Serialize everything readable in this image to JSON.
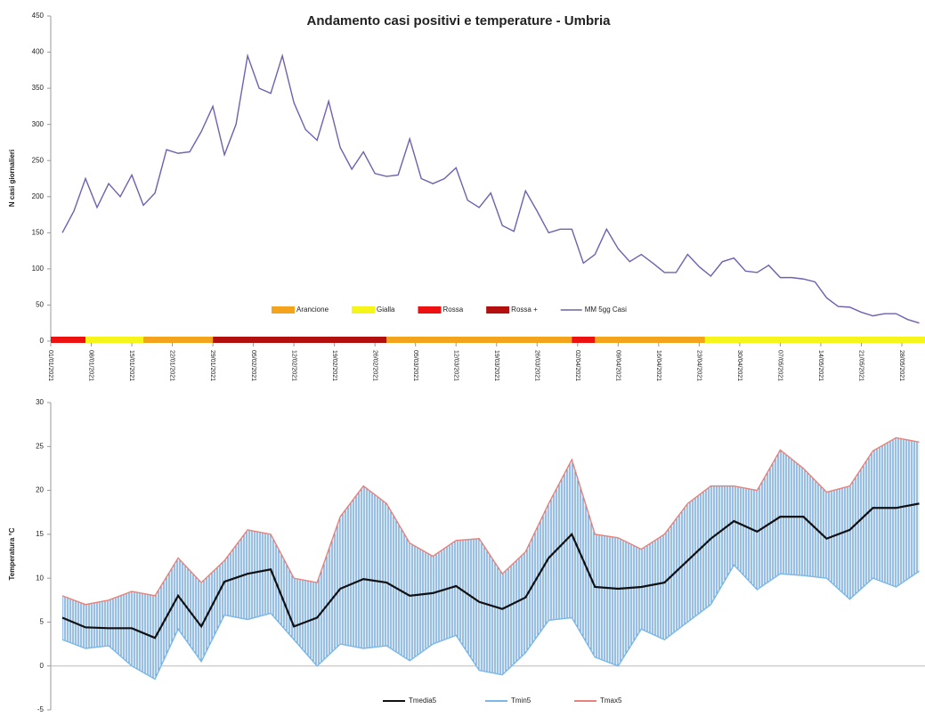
{
  "chart_data": [
    {
      "type": "line",
      "title": "Andamento casi positivi e temperature - Umbria",
      "y_label": "N casi giornalieri",
      "x": [
        2,
        4,
        6,
        8,
        10,
        12,
        14,
        16,
        18,
        20,
        22,
        24,
        26,
        28,
        30,
        32,
        34,
        36,
        38,
        40,
        42,
        44,
        46,
        48,
        50,
        52,
        54,
        56,
        58,
        60,
        62,
        64,
        66,
        68,
        70,
        72,
        74,
        76,
        78,
        80,
        82,
        84,
        86,
        88,
        90,
        92,
        94,
        96,
        98,
        100,
        102,
        104,
        106,
        108,
        110,
        112,
        114,
        116,
        118,
        120,
        122,
        124,
        126,
        128,
        130,
        132,
        134,
        136,
        138,
        140,
        142,
        144,
        146,
        148,
        150
      ],
      "series": [
        {
          "name": "MM 5gg Casi",
          "color": "#7060b0",
          "values": [
            150,
            180,
            225,
            185,
            218,
            200,
            230,
            188,
            205,
            265,
            260,
            262,
            290,
            325,
            258,
            300,
            395,
            350,
            343,
            395,
            330,
            293,
            278,
            332,
            268,
            238,
            262,
            232,
            228,
            230,
            280,
            225,
            218,
            225,
            240,
            195,
            185,
            205,
            160,
            152,
            208,
            180,
            150,
            155,
            155,
            108,
            120,
            155,
            128,
            110,
            120,
            108,
            95,
            95,
            120,
            103,
            90,
            110,
            115,
            97,
            95,
            105,
            88,
            88,
            86,
            82,
            60,
            48,
            47,
            40,
            35,
            38,
            38,
            30,
            25
          ]
        }
      ],
      "zones": [
        {
          "name": "Arancione",
          "color": "#f4a41c",
          "periods": [
            [
              16,
              28
            ],
            [
              58,
              90
            ],
            [
              94,
              113
            ]
          ]
        },
        {
          "name": "Gialla",
          "color": "#f5f51a",
          "periods": [
            [
              6,
              16
            ],
            [
              113,
              151
            ]
          ]
        },
        {
          "name": "Rossa",
          "color": "#ee1111",
          "periods": [
            [
              0,
              6
            ],
            [
              90,
              94
            ]
          ]
        },
        {
          "name": "Rossa +",
          "color": "#b30f0f",
          "periods": [
            [
              28,
              58
            ]
          ]
        }
      ],
      "xlim": [
        0,
        151
      ],
      "xticks": [
        {
          "value": 0,
          "label": "01/01/2021"
        },
        {
          "value": 7,
          "label": "08/01/2021"
        },
        {
          "value": 14,
          "label": "15/01/2021"
        },
        {
          "value": 21,
          "label": "22/01/2021"
        },
        {
          "value": 28,
          "label": "29/01/2021"
        },
        {
          "value": 35,
          "label": "05/02/2021"
        },
        {
          "value": 42,
          "label": "12/02/2021"
        },
        {
          "value": 49,
          "label": "19/02/2021"
        },
        {
          "value": 56,
          "label": "26/02/2021"
        },
        {
          "value": 63,
          "label": "05/03/2021"
        },
        {
          "value": 70,
          "label": "12/03/2021"
        },
        {
          "value": 77,
          "label": "19/03/2021"
        },
        {
          "value": 84,
          "label": "26/03/2021"
        },
        {
          "value": 91,
          "label": "02/04/2021"
        },
        {
          "value": 98,
          "label": "09/04/2021"
        },
        {
          "value": 105,
          "label": "16/04/2021"
        },
        {
          "value": 112,
          "label": "23/04/2021"
        },
        {
          "value": 119,
          "label": "30/04/2021"
        },
        {
          "value": 126,
          "label": "07/05/2021"
        },
        {
          "value": 133,
          "label": "14/05/2021"
        },
        {
          "value": 140,
          "label": "21/05/2021"
        },
        {
          "value": 147,
          "label": "28/05/2021"
        }
      ],
      "ylim": [
        0,
        450
      ],
      "yticks": [
        0,
        50,
        100,
        150,
        200,
        250,
        300,
        350,
        400,
        450
      ]
    },
    {
      "type": "band",
      "y_label": "Temperatura °C",
      "x": [
        2,
        6,
        10,
        14,
        18,
        22,
        26,
        30,
        34,
        38,
        42,
        46,
        50,
        54,
        58,
        62,
        66,
        70,
        74,
        78,
        82,
        86,
        90,
        94,
        98,
        102,
        106,
        110,
        114,
        118,
        122,
        126,
        130,
        134,
        138,
        142,
        146,
        150
      ],
      "series": [
        {
          "name": "Tmedia5",
          "color": "#111111",
          "values": [
            5.5,
            4.4,
            4.3,
            4.3,
            3.2,
            8,
            4.5,
            9.6,
            10.5,
            11,
            4.5,
            5.5,
            8.8,
            9.9,
            9.5,
            8,
            8.3,
            9.1,
            7.3,
            6.5,
            7.8,
            12.3,
            15,
            9,
            8.8,
            9,
            9.5,
            12,
            14.5,
            16.5,
            15.3,
            17,
            17,
            14.5,
            15.5,
            18,
            18,
            18.5
          ]
        },
        {
          "name": "Tmin5",
          "color": "#7ab8e8",
          "values": [
            3,
            2,
            2.3,
            0,
            -1.5,
            4.2,
            0.5,
            5.8,
            5.3,
            6,
            3,
            0,
            2.5,
            2,
            2.3,
            0.6,
            2.5,
            3.5,
            -0.5,
            -1,
            1.5,
            5.2,
            5.5,
            1,
            0,
            4.2,
            3,
            5,
            7,
            11.5,
            8.7,
            10.5,
            10.3,
            10,
            7.6,
            10,
            9,
            10.8
          ]
        },
        {
          "name": "Tmax5",
          "color": "#e8827a",
          "values": [
            8,
            7,
            7.5,
            8.5,
            8,
            12.3,
            9.5,
            12,
            15.5,
            15,
            10,
            9.5,
            17,
            20.5,
            18.5,
            14,
            12.5,
            14.3,
            14.5,
            10.5,
            13,
            18.5,
            23.5,
            15,
            14.6,
            13.3,
            15,
            18.5,
            20.5,
            20.5,
            20,
            24.6,
            22.5,
            19.8,
            20.5,
            24.5,
            26,
            25.5
          ]
        }
      ],
      "xlim": [
        0,
        151
      ],
      "ylim": [
        -5,
        30
      ],
      "yticks": [
        -5,
        0,
        5,
        10,
        15,
        20,
        25,
        30
      ]
    }
  ]
}
